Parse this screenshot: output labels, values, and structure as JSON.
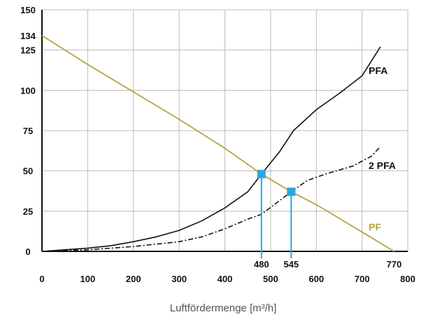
{
  "chart_data": {
    "type": "line",
    "xlabel": "Luftfördermenge [m³/h]",
    "ylabel": "",
    "xlim": [
      0,
      800
    ],
    "ylim": [
      0,
      150
    ],
    "x_ticks": [
      "0",
      "100",
      "200",
      "300",
      "400",
      "500",
      "600",
      "700",
      "800"
    ],
    "y_ticks": [
      "0",
      "25",
      "50",
      "75",
      "100",
      "125",
      "150"
    ],
    "extra_y_tick": {
      "label": "134",
      "value": 134
    },
    "markers": [
      {
        "label": "480",
        "x": 480,
        "y": 48
      },
      {
        "label": "545",
        "x": 545,
        "y": 37
      }
    ],
    "end_label": {
      "label": "770",
      "x": 770
    },
    "series": [
      {
        "name": "PF",
        "style": "solid",
        "color": "#b8a33a",
        "points": [
          [
            0,
            134
          ],
          [
            100,
            116
          ],
          [
            200,
            99
          ],
          [
            300,
            82
          ],
          [
            400,
            64
          ],
          [
            480,
            48
          ],
          [
            545,
            37
          ],
          [
            600,
            29
          ],
          [
            700,
            12
          ],
          [
            770,
            0
          ]
        ]
      },
      {
        "name": "PFA",
        "style": "solid",
        "color": "#111111",
        "points": [
          [
            0,
            0
          ],
          [
            50,
            1
          ],
          [
            100,
            2
          ],
          [
            150,
            3.5
          ],
          [
            200,
            6
          ],
          [
            250,
            9
          ],
          [
            300,
            13
          ],
          [
            350,
            19
          ],
          [
            400,
            27
          ],
          [
            450,
            37
          ],
          [
            480,
            48
          ],
          [
            520,
            62
          ],
          [
            550,
            75
          ],
          [
            600,
            88
          ],
          [
            650,
            98
          ],
          [
            700,
            109
          ],
          [
            740,
            127
          ]
        ]
      },
      {
        "name": "2 PFA",
        "style": "dashed",
        "color": "#111111",
        "points": [
          [
            0,
            0
          ],
          [
            100,
            1
          ],
          [
            200,
            3
          ],
          [
            300,
            6
          ],
          [
            350,
            9
          ],
          [
            400,
            14
          ],
          [
            450,
            20
          ],
          [
            480,
            23
          ],
          [
            545,
            37
          ],
          [
            580,
            44
          ],
          [
            620,
            48
          ],
          [
            680,
            53
          ],
          [
            720,
            59
          ],
          [
            740,
            65
          ]
        ]
      }
    ]
  },
  "colors": {
    "grid": "#bbbbbb",
    "axis": "#111111",
    "marker": "#29a8e0",
    "pf": "#b8a33a",
    "curve": "#111111"
  }
}
